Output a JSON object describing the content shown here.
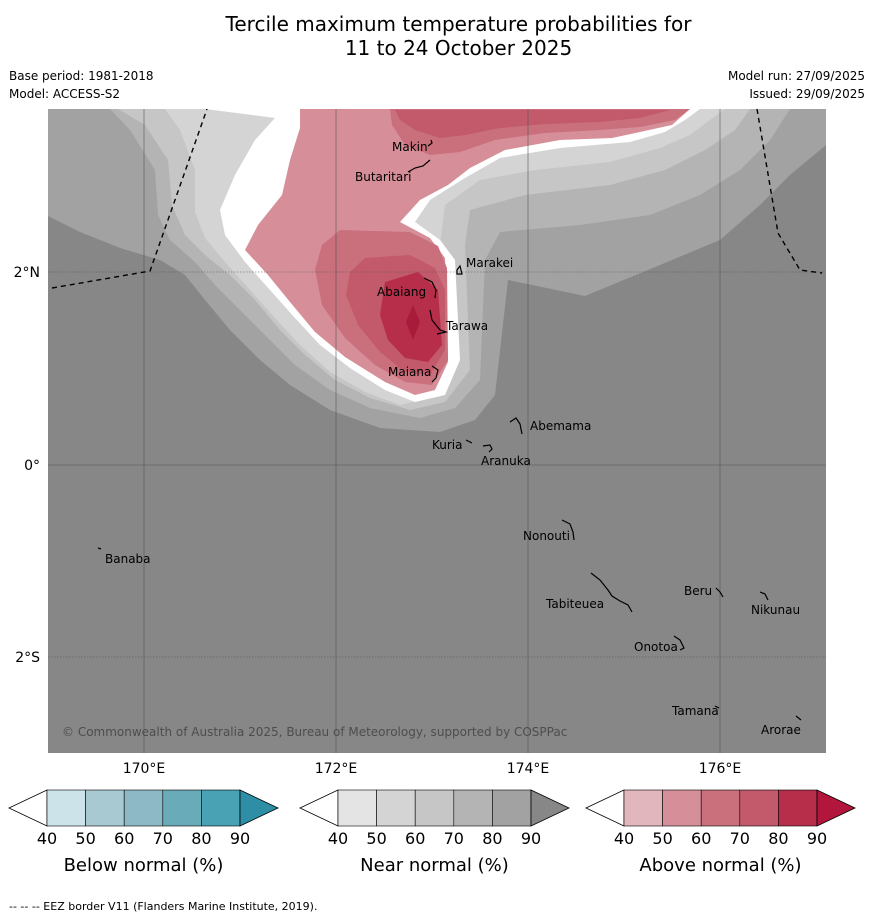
{
  "title": {
    "line1": "Tercile maximum temperature probabilities for",
    "line2": "11 to 24 October 2025"
  },
  "meta": {
    "base_period": "Base period: 1981-2018",
    "model": "Model: ACCESS-S2",
    "model_run": "Model run: 27/09/2025",
    "issued": "Issued: 29/09/2025"
  },
  "axes": {
    "lat_ticks": [
      "2°N",
      "0°",
      "2°S"
    ],
    "lon_ticks": [
      "170°E",
      "172°E",
      "174°E",
      "176°E"
    ]
  },
  "islands": {
    "makin": "Makin",
    "butaritari": "Butaritari",
    "marakei": "Marakei",
    "abaiang": "Abaiang",
    "tarawa": "Tarawa",
    "maiana": "Maiana",
    "abemama": "Abemama",
    "kuria": "Kuria",
    "aranuka": "Aranuka",
    "nonouti": "Nonouti",
    "banaba": "Banaba",
    "tabiteuea": "Tabiteuea",
    "beru": "Beru",
    "nikunau": "Nikunau",
    "onotoa": "Onotoa",
    "tamana": "Tamana",
    "arorae": "Arorae"
  },
  "copyright": "© Commonwealth of Australia 2025, Bureau of Meteorology, supported by COSPPac",
  "colorbars": {
    "ticks": [
      "40",
      "50",
      "60",
      "70",
      "80",
      "90"
    ],
    "below": {
      "title": "Below normal (%)",
      "colors": [
        "#ffffff",
        "#cde3ea",
        "#a9c9d2",
        "#8cb9c5",
        "#6aabba",
        "#49a1b4",
        "#2d8ea6"
      ]
    },
    "near": {
      "title": "Near normal (%)",
      "colors": [
        "#ffffff",
        "#e4e4e4",
        "#d4d4d4",
        "#c6c6c6",
        "#b4b4b4",
        "#a2a2a2",
        "#878787"
      ]
    },
    "above": {
      "title": "Above normal (%)",
      "colors": [
        "#ffffff",
        "#e1b6bd",
        "#d68f99",
        "#ca6f7c",
        "#c25a6b",
        "#b62e4a",
        "#b3163d"
      ]
    }
  },
  "footer": "--  --  -- EEZ border V11 (Flanders Marine Institute, 2019)."
}
